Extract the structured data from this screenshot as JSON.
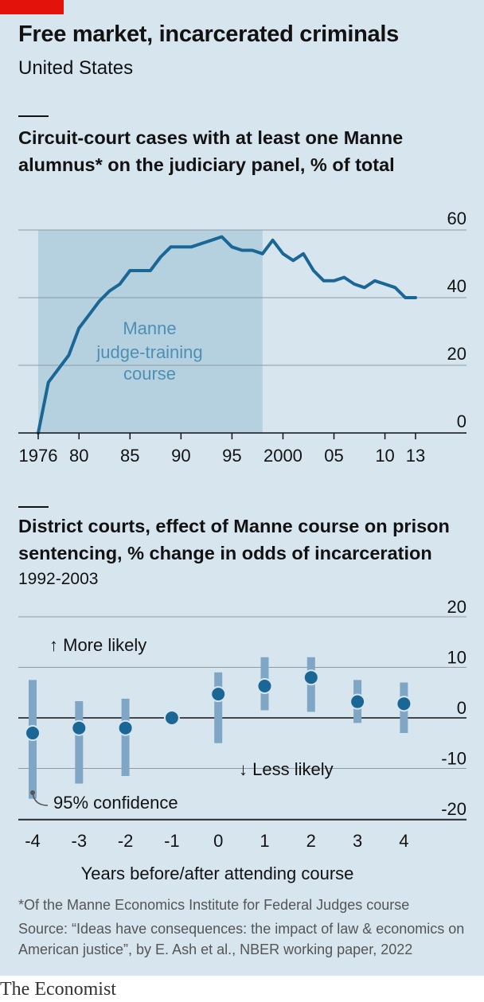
{
  "header": {
    "title": "Free market, incarcerated criminals",
    "subtitle": "United States"
  },
  "chart_data": [
    {
      "type": "line",
      "title": "Circuit-court cases with at least one Manne alumnus* on the judiciary panel, % of total",
      "x": [
        1976,
        1977,
        1978,
        1979,
        1980,
        1981,
        1982,
        1983,
        1984,
        1985,
        1986,
        1987,
        1988,
        1989,
        1990,
        1991,
        1992,
        1993,
        1994,
        1995,
        1996,
        1997,
        1998,
        1999,
        2000,
        2001,
        2002,
        2003,
        2004,
        2005,
        2006,
        2007,
        2008,
        2009,
        2010,
        2011,
        2012,
        2013
      ],
      "series": [
        {
          "values": [
            0,
            15,
            19,
            23,
            31,
            35,
            39,
            42,
            44,
            48,
            48,
            48,
            52,
            55,
            55,
            55,
            56,
            57,
            58,
            55,
            54,
            54,
            53,
            57,
            53,
            51,
            53,
            48,
            45,
            45,
            46,
            44,
            43,
            45,
            44,
            43,
            40,
            40
          ]
        }
      ],
      "x_tick_labels": [
        "1976",
        "80",
        "85",
        "90",
        "95",
        "2000",
        "05",
        "10",
        "13"
      ],
      "x_ticks": [
        1976,
        1980,
        1985,
        1990,
        1995,
        2000,
        2005,
        2010,
        2013
      ],
      "y_ticks": [
        0,
        20,
        40,
        60
      ],
      "xlim": [
        1976,
        2013
      ],
      "ylim": [
        0,
        60
      ],
      "shaded_region": {
        "from": 1976,
        "to": 1998,
        "label_lines": [
          "Manne",
          "judge-training",
          "course"
        ]
      },
      "grid": true,
      "colors": {
        "line": "#1a6796",
        "shade": "#b5d0df",
        "shade_text": "#4e8fb4",
        "grid": "#8c9aa4"
      }
    },
    {
      "type": "scatter",
      "title": "District courts, effect of Manne course on prison sentencing, % change in odds of incarceration",
      "subtitle": "1992-2003",
      "x": [
        -4,
        -3,
        -2,
        -1,
        0,
        1,
        2,
        3,
        4
      ],
      "estimate": [
        -3,
        -2,
        -2,
        0,
        4.7,
        6.3,
        8,
        3.2,
        2.8
      ],
      "ci_low": [
        -16,
        -13,
        -11.5,
        null,
        -5,
        1.5,
        1.2,
        -1,
        -3
      ],
      "ci_high": [
        7.5,
        3.3,
        3.8,
        null,
        9,
        12,
        12,
        7.5,
        7
      ],
      "xlabel": "Years before/after attending course",
      "x_tick_labels": [
        "-4",
        "-3",
        "-2",
        "-1",
        "0",
        "1",
        "2",
        "3",
        "4"
      ],
      "y_tick_labels": [
        "20",
        "10",
        "0",
        "-10",
        "-20"
      ],
      "y_ticks": [
        20,
        10,
        0,
        -10,
        -20
      ],
      "ylim": [
        -20,
        20
      ],
      "annotations": {
        "up": "↑ More likely",
        "down": "↓ Less likely",
        "ci": "95% confidence"
      },
      "grid": true,
      "colors": {
        "dot": "#1a6796",
        "ci_bar": "#7fa6c4",
        "grid": "#8c9aa4",
        "zero": "#121212"
      }
    }
  ],
  "footer": {
    "footnote": "*Of the Manne Economics Institute for Federal Judges course",
    "source": "Source: “Ideas have consequences: the impact of law & economics on American justice”, by E. Ash et al., NBER working paper, 2022",
    "brand": "The Economist"
  }
}
